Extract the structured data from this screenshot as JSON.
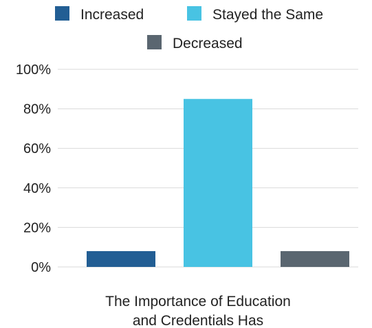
{
  "chart_data": {
    "type": "bar",
    "categories": [
      "Increased",
      "Stayed the Same",
      "Decreased"
    ],
    "values": [
      8,
      85,
      8
    ],
    "colors": [
      "#225e94",
      "#48c3e3",
      "#5a6670"
    ],
    "ylim": [
      0,
      100
    ],
    "yticks": [
      0,
      20,
      40,
      60,
      80,
      100
    ],
    "ytick_labels": [
      "0%",
      "20%",
      "40%",
      "60%",
      "80%",
      "100%"
    ],
    "xlabel_lines": [
      "The Importance of Education",
      "and Credentials Has"
    ],
    "legend": {
      "placement": "top",
      "entries": [
        {
          "label": "Increased",
          "color": "#225e94"
        },
        {
          "label": "Stayed the Same",
          "color": "#48c3e3"
        },
        {
          "label": "Decreased",
          "color": "#5a6670"
        }
      ]
    },
    "grid": true,
    "grid_color": "#d9d9d9"
  }
}
